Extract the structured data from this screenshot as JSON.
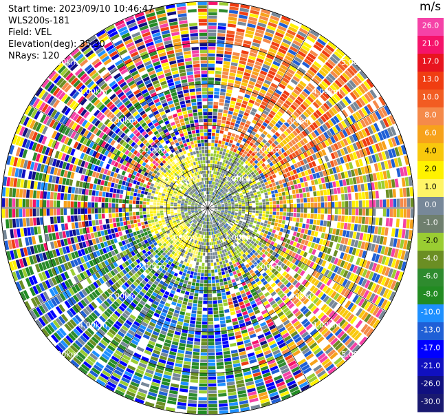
{
  "header": {
    "start_time": "Start time: 2023/09/10 10:46:47",
    "instrument": "WLS200s-181",
    "field": "Field: VEL",
    "elevation": "Elevation(deg): 35.30",
    "nrays": "NRays: 120"
  },
  "chart_data": {
    "type": "heatmap",
    "title": "",
    "range_rings_km": [
      1.0,
      2.0,
      3.0,
      4.0,
      5.0
    ],
    "ring_label_text": [
      "1.00km",
      "2.00km",
      "3.00km",
      "4.00km",
      "5.00km"
    ],
    "n_rays": 120,
    "colorbar": {
      "unit": "m/s",
      "tick_labels": [
        "26.0",
        "21.0",
        "17.0",
        "13.0",
        "10.0",
        "8.0",
        "6.0",
        "4.0",
        "2.0",
        "1.0",
        "0.0",
        "-1.0",
        "-2.0",
        "-4.0",
        "-6.0",
        "-8.0",
        "-10.0",
        "-13.0",
        "-17.0",
        "-21.0",
        "-26.0",
        "-30.0"
      ],
      "colors": [
        "#f542a7",
        "#f5136a",
        "#e8141f",
        "#f03d12",
        "#f25c22",
        "#f58a4a",
        "#f7a21b",
        "#f9c80c",
        "#fff200",
        "#fff566",
        "#778899",
        "#6f7f6e",
        "#9acd32",
        "#6b8e23",
        "#2e8b2e",
        "#228b22",
        "#1e90ff",
        "#1f5fd6",
        "#0000ff",
        "#1010c0",
        "#101080",
        "#191970"
      ]
    }
  }
}
